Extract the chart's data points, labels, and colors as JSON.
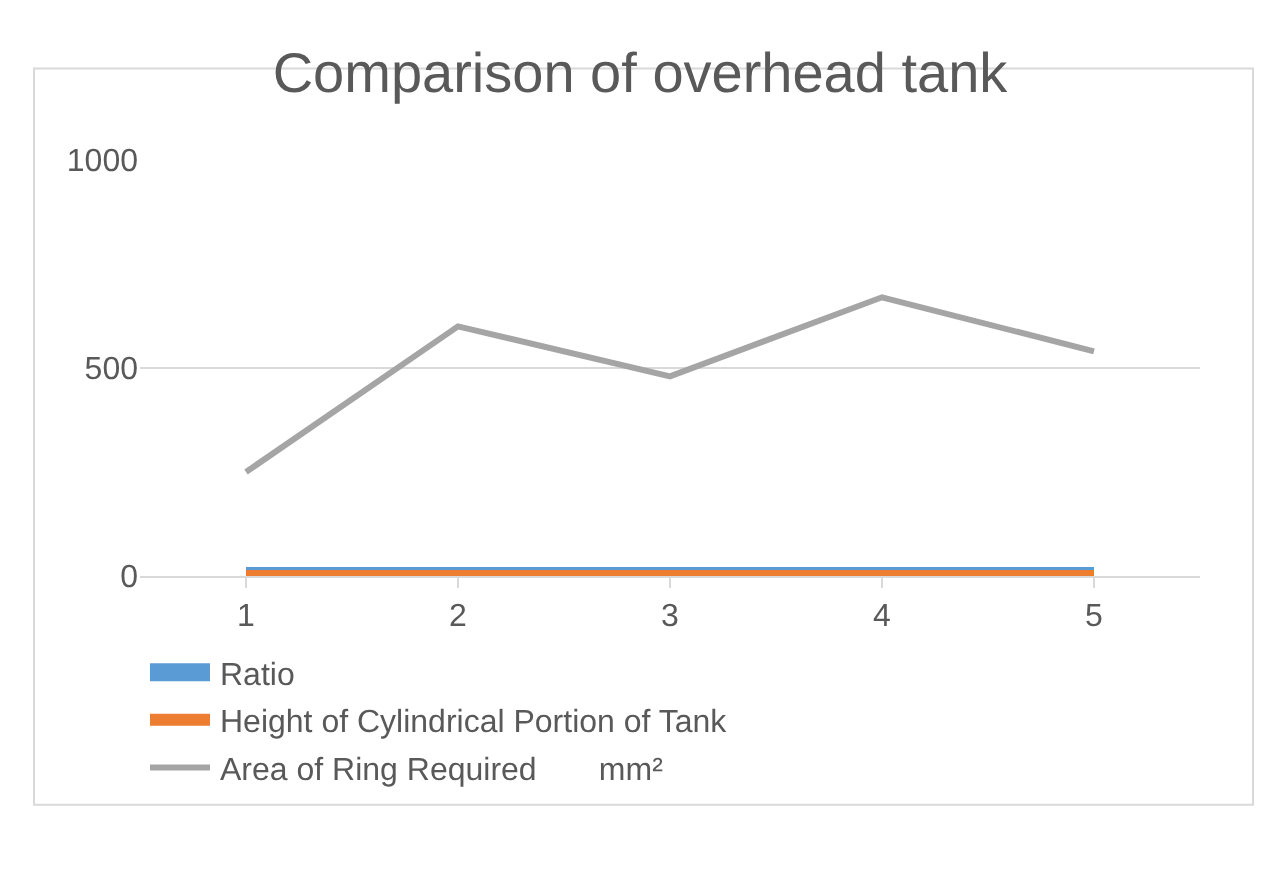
{
  "chart_data": {
    "type": "line",
    "title": "Comparison of overhead tank",
    "categories": [
      "1",
      "2",
      "3",
      "4",
      "5"
    ],
    "series": [
      {
        "name": "Ratio",
        "color": "#5b9bd5",
        "values": [
          0,
          0,
          0,
          0,
          0
        ]
      },
      {
        "name": "Height of Cylindrical Portion of Tank",
        "color": "#ed7d31",
        "values": [
          0,
          0,
          0,
          0,
          0
        ]
      },
      {
        "name": "Area of Ring Required       mm²",
        "color": "#a5a5a5",
        "values": [
          250,
          600,
          480,
          670,
          540
        ]
      }
    ],
    "ylim": [
      0,
      1000
    ],
    "yticks": [
      0,
      500,
      1000
    ],
    "grid": "y",
    "legend": "bottom",
    "marker": "none",
    "line_style": "solid"
  }
}
